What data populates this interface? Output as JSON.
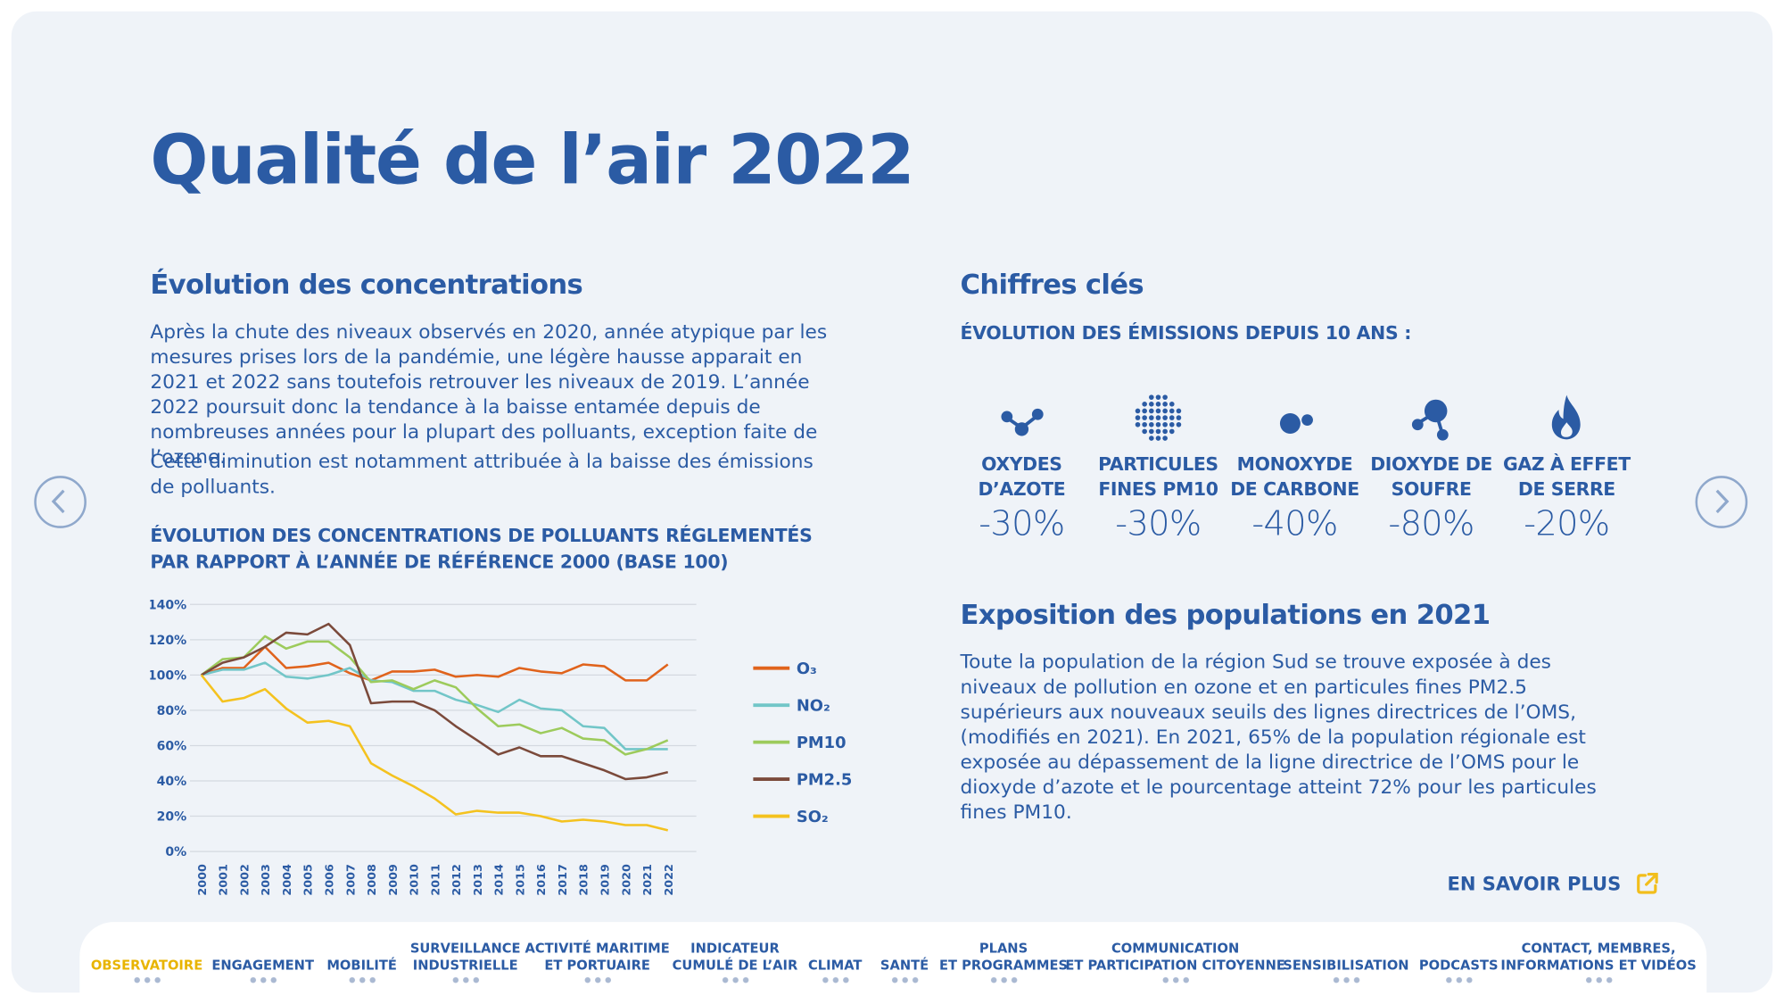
{
  "title": "Qualité de l’air 2022",
  "evolution": {
    "heading": "Évolution des concentrations",
    "paragraphs": [
      "Après la chute des niveaux observés en 2020, année atypique par les mesures prises lors de la pandémie, une légère hausse apparait en 2021 et 2022 sans toutefois retrouver les niveaux de 2019. L’année 2022 poursuit donc la tendance à la baisse entamée depuis de nombreuses années pour la plupart des polluants, exception faite de l’ozone.",
      "Cette diminution est notamment attribuée à la baisse des émissions de polluants."
    ],
    "chart_heading": "ÉVOLUTION DES CONCENTRATIONS DE POLLUANTS RÉGLEMENTÉS PAR RAPPORT À L’ANNÉE DE RÉFÉRENCE 2000 (BASE 100)"
  },
  "chart_data": {
    "type": "line",
    "categories": [
      "2000",
      "2001",
      "2002",
      "2003",
      "2004",
      "2005",
      "2006",
      "2007",
      "2008",
      "2009",
      "2010",
      "2011",
      "2012",
      "2013",
      "2014",
      "2015",
      "2016",
      "2017",
      "2018",
      "2019",
      "2020",
      "2021",
      "2022"
    ],
    "ylim": [
      0,
      140
    ],
    "yticks": [
      {
        "value": 0,
        "label": "0%"
      },
      {
        "value": 20,
        "label": "20%"
      },
      {
        "value": 40,
        "label": "40%"
      },
      {
        "value": 60,
        "label": "60%"
      },
      {
        "value": 80,
        "label": "80%"
      },
      {
        "value": 100,
        "label": "100%"
      },
      {
        "value": 120,
        "label": "120%"
      },
      {
        "value": 140,
        "label": "140%"
      }
    ],
    "grid": true,
    "legend": "right",
    "series": [
      {
        "name": "O₃",
        "color": "#e0631c",
        "values": [
          100,
          104,
          104,
          116,
          104,
          105,
          107,
          101,
          97,
          102,
          102,
          103,
          99,
          100,
          99,
          104,
          102,
          101,
          106,
          105,
          97,
          97,
          106
        ]
      },
      {
        "name": "NO₂",
        "color": "#72c6c8",
        "values": [
          100,
          103,
          103,
          107,
          99,
          98,
          100,
          104,
          97,
          96,
          91,
          91,
          86,
          83,
          79,
          86,
          81,
          80,
          71,
          70,
          58,
          58,
          58
        ]
      },
      {
        "name": "PM10",
        "color": "#9dcb5c",
        "values": [
          100,
          109,
          110,
          122,
          115,
          119,
          119,
          110,
          96,
          97,
          92,
          97,
          93,
          81,
          71,
          72,
          67,
          70,
          64,
          63,
          55,
          58,
          63
        ]
      },
      {
        "name": "PM2.5",
        "color": "#7b4a3b",
        "values": [
          100,
          107,
          110,
          116,
          124,
          123,
          129,
          117,
          84,
          85,
          85,
          80,
          71,
          63,
          55,
          59,
          54,
          54,
          50,
          46,
          41,
          42,
          45
        ]
      },
      {
        "name": "SO₂",
        "color": "#f4c21f",
        "values": [
          100,
          85,
          87,
          92,
          81,
          73,
          74,
          71,
          50,
          43,
          37,
          30,
          21,
          23,
          22,
          22,
          20,
          17,
          18,
          17,
          15,
          15,
          12
        ]
      }
    ]
  },
  "key_figures": {
    "heading": "Chiffres clés",
    "subheading": "ÉVOLUTION DES ÉMISSIONS DEPUIS 10 ANS :",
    "items": [
      {
        "label": [
          "OXYDES",
          "D’AZOTE"
        ],
        "value": "-30%"
      },
      {
        "label": [
          "PARTICULES",
          "FINES PM10"
        ],
        "value": "-30%"
      },
      {
        "label": [
          "MONOXYDE",
          "DE CARBONE"
        ],
        "value": "-40%"
      },
      {
        "label": [
          "DIOXYDE DE",
          "SOUFRE"
        ],
        "value": "-80%"
      },
      {
        "label": [
          "GAZ À EFFET",
          "DE SERRE"
        ],
        "value": "-20%"
      }
    ]
  },
  "exposure": {
    "heading": "Exposition des populations en 2021",
    "text": "Toute la population de la région Sud se trouve exposée à des niveaux de pollution en ozone et en particules fines PM2.5 supérieurs aux nouveaux seuils des lignes directrices de l’OMS, (modifiés en 2021). En 2021, 65% de la population régionale est exposée au dépassement de la ligne directrice de l’OMS pour le dioxyde d’azote et le pourcentage atteint 72% pour les particules fines PM10."
  },
  "more_link": "EN SAVOIR PLUS",
  "nav": [
    [
      "OBSERVATOIRE"
    ],
    [
      "ENGAGEMENT"
    ],
    [
      "MOBILITÉ"
    ],
    [
      "SURVEILLANCE",
      "INDUSTRIELLE"
    ],
    [
      "ACTIVITÉ MARITIME",
      "ET PORTUAIRE"
    ],
    [
      "INDICATEUR",
      "CUMULÉ DE L’AIR"
    ],
    [
      "CLIMAT"
    ],
    [
      "SANTÉ"
    ],
    [
      "PLANS",
      "ET PROGRAMMES"
    ],
    [
      "COMMUNICATION",
      "ET PARTICIPATION CITOYENNE"
    ],
    [
      "SENSIBILISATION"
    ],
    [
      "PODCASTS"
    ],
    [
      "CONTACT, MEMBRES,",
      "INFORMATIONS ET VIDÉOS"
    ]
  ]
}
